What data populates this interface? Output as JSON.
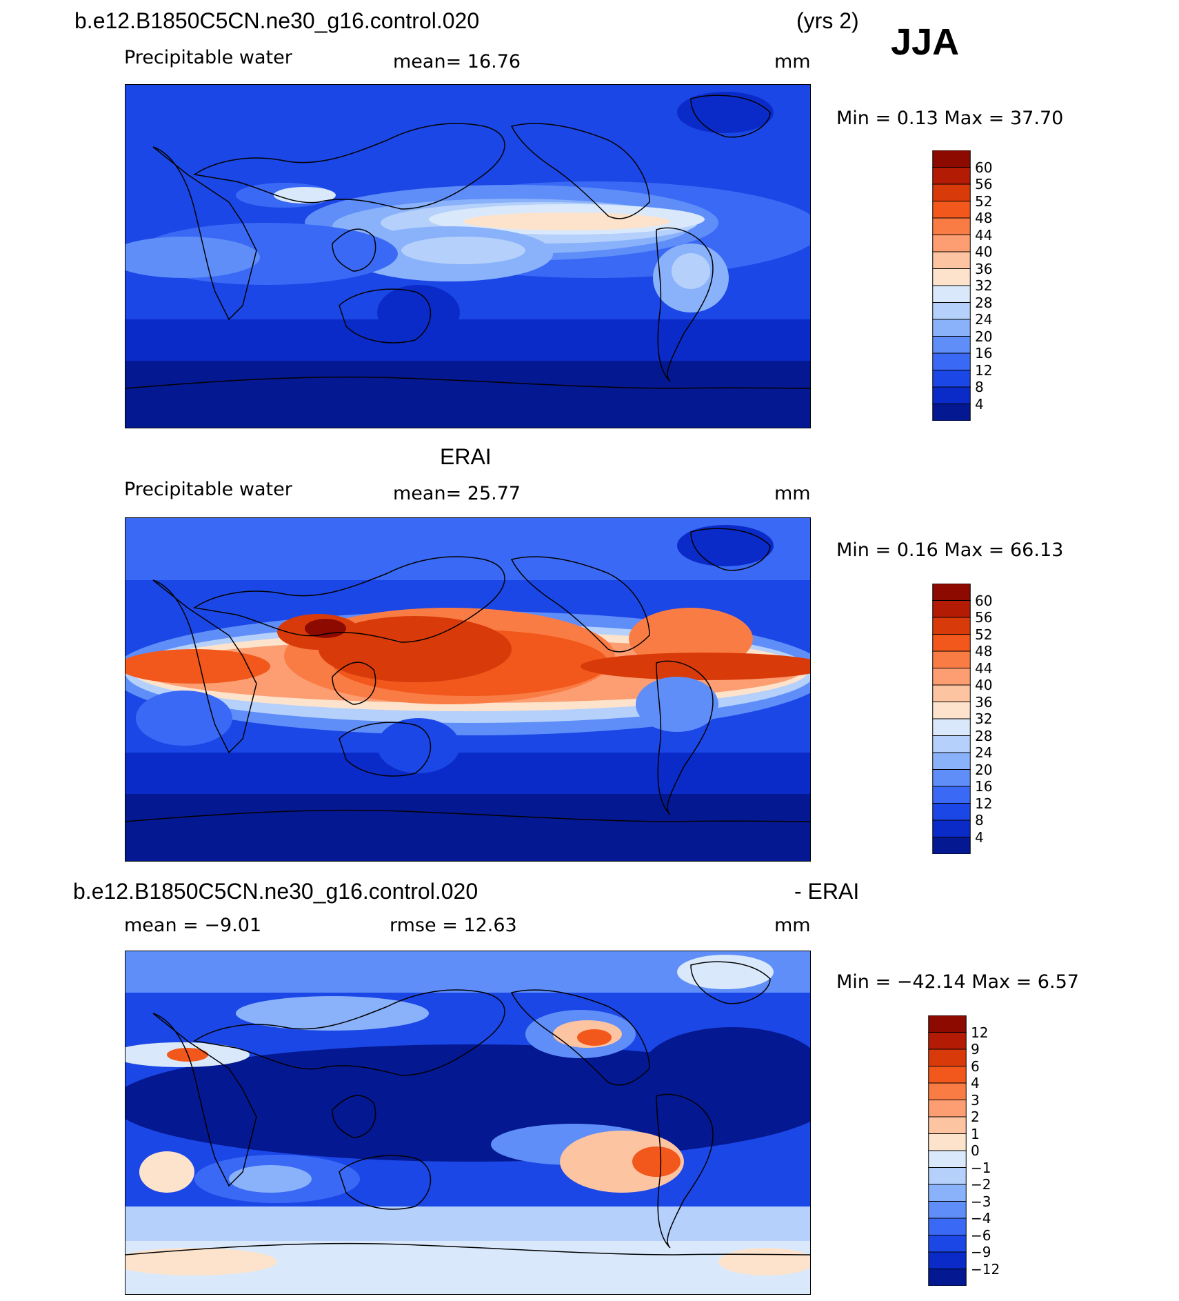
{
  "season": "JJA",
  "panels": [
    {
      "id": "model",
      "case_title": "b.e12.B1850C5CN.ne30_g16.control.020",
      "right_title": "(yrs 2)",
      "variable": "Precipitable water",
      "stat_text": "mean=   16.76",
      "units": "mm",
      "minmax": "Min =    0.13 Max =   37.70",
      "colorbar": {
        "labels": [
          "60",
          "56",
          "52",
          "48",
          "44",
          "40",
          "36",
          "32",
          "28",
          "24",
          "20",
          "16",
          "12",
          "8",
          "4"
        ],
        "colors": [
          "#8c0a00",
          "#b31b04",
          "#d93a0a",
          "#f2571c",
          "#fa7c45",
          "#fc9e72",
          "#fdc4a2",
          "#fde3cc",
          "#d9e9fb",
          "#b4d0fb",
          "#8ab2fb",
          "#5f8ef9",
          "#3a6af5",
          "#1b47e6",
          "#0a2bc8",
          "#041891"
        ]
      }
    },
    {
      "id": "obs",
      "case_title": "ERAI",
      "variable": "Precipitable water",
      "stat_text": "mean=   25.77",
      "units": "mm",
      "minmax": "Min =    0.16 Max =   66.13",
      "colorbar": {
        "labels": [
          "60",
          "56",
          "52",
          "48",
          "44",
          "40",
          "36",
          "32",
          "28",
          "24",
          "20",
          "16",
          "12",
          "8",
          "4"
        ],
        "colors": [
          "#8c0a00",
          "#b31b04",
          "#d93a0a",
          "#f2571c",
          "#fa7c45",
          "#fc9e72",
          "#fdc4a2",
          "#fde3cc",
          "#d9e9fb",
          "#b4d0fb",
          "#8ab2fb",
          "#5f8ef9",
          "#3a6af5",
          "#1b47e6",
          "#0a2bc8",
          "#041891"
        ]
      }
    },
    {
      "id": "diff",
      "case_title": "b.e12.B1850C5CN.ne30_g16.control.020",
      "right_title": "- ERAI",
      "stat_text": "mean =   −9.01",
      "stat2_text": "rmse =   12.63",
      "units": "mm",
      "minmax": "Min = −42.14 Max =    6.57",
      "colorbar": {
        "labels": [
          "12",
          "9",
          "6",
          "4",
          "3",
          "2",
          "1",
          "0",
          "−1",
          "−2",
          "−3",
          "−4",
          "−6",
          "−9",
          "−12"
        ],
        "colors": [
          "#8c0a00",
          "#b31b04",
          "#d93a0a",
          "#f2571c",
          "#fa7c45",
          "#fc9e72",
          "#fdc4a2",
          "#fde3cc",
          "#d9e9fb",
          "#b4d0fb",
          "#8ab2fb",
          "#5f8ef9",
          "#3a6af5",
          "#1b47e6",
          "#0a2bc8",
          "#041891"
        ]
      }
    }
  ]
}
